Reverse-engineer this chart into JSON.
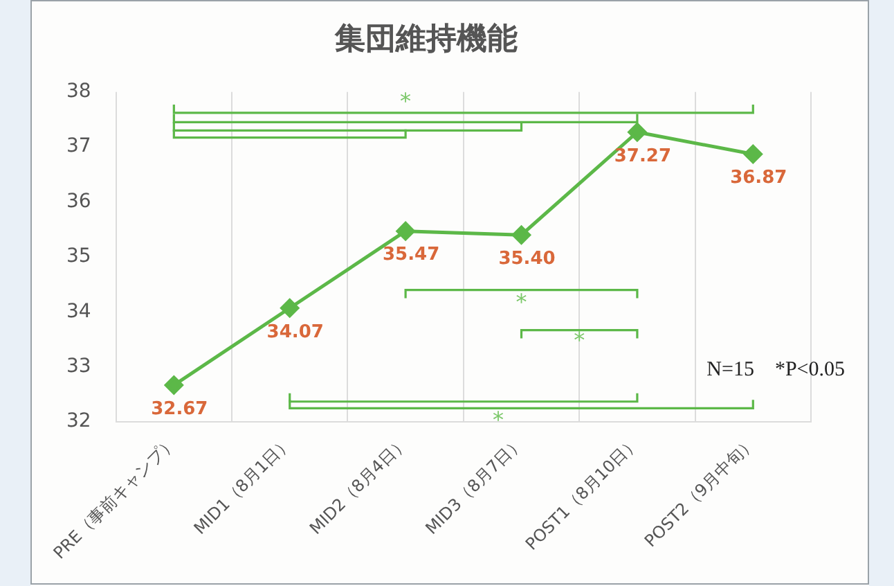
{
  "chart_data": {
    "type": "line",
    "title": "集団維持機能",
    "categories": [
      "PRE（事前キャンプ）",
      "MID1（8月1日）",
      "MID2（8月4日）",
      "MID3（8月7日）",
      "POST1（8月10日）",
      "POST2（9月中旬）"
    ],
    "series": [
      {
        "color": "#5cb848",
        "values": [
          32.67,
          34.07,
          35.47,
          35.4,
          37.27,
          36.87
        ],
        "value_labels": [
          "32.67",
          "34.07",
          "35.47",
          "35.40",
          "37.27",
          "36.87"
        ]
      }
    ],
    "ylim": [
      32,
      38
    ],
    "yticks": [
      32,
      33,
      34,
      35,
      36,
      37,
      38
    ],
    "grid": "x",
    "legend": false,
    "marker": "diamond",
    "line_style": "solid",
    "annotations": [
      "*",
      "*",
      "*",
      "*",
      "N=15　*P<0.05"
    ]
  }
}
